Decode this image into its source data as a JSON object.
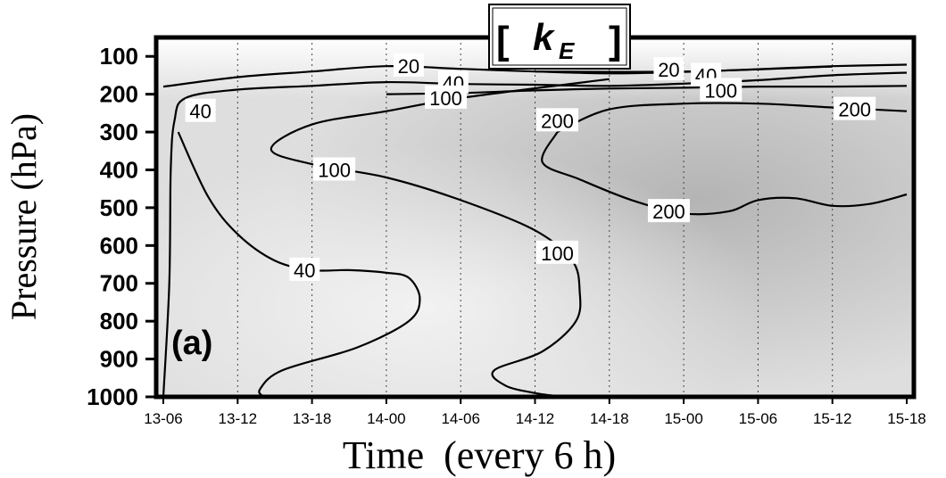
{
  "chart_data": {
    "type": "contour",
    "title": {
      "bracket_open": "[",
      "symbol": "k",
      "subscript": "E",
      "bracket_close": "]"
    },
    "panel_label": "(a)",
    "xlabel": "Time  (every 6 h)",
    "ylabel": "Pressure (hPa)",
    "x_categories": [
      "13-06",
      "13-12",
      "13-18",
      "14-00",
      "14-06",
      "14-12",
      "14-18",
      "15-00",
      "15-06",
      "15-12",
      "15-18"
    ],
    "y_ticks": [
      100,
      200,
      300,
      400,
      500,
      600,
      700,
      800,
      900,
      1000
    ],
    "ylim": [
      1000,
      50
    ],
    "y_scale": "linear (pressure increasing downward)",
    "grid": "dotted vertical lines at each time step",
    "shading": "grayscale, darker = larger values",
    "contour_levels": [
      20,
      40,
      100,
      200
    ],
    "contours": [
      {
        "level": 20,
        "label": "20",
        "points": [
          [
            0,
            180
          ],
          [
            1,
            155
          ],
          [
            2,
            140
          ],
          [
            3,
            126
          ],
          [
            4,
            133
          ],
          [
            5,
            140
          ],
          [
            6,
            145
          ],
          [
            7,
            141
          ],
          [
            8,
            134
          ],
          [
            9,
            126
          ],
          [
            10,
            122
          ]
        ]
      },
      {
        "level": 20,
        "label": "20",
        "points": [
          [
            5,
            140
          ],
          [
            7,
            140
          ],
          [
            9,
            127
          ]
        ]
      },
      {
        "level": 40,
        "label": "40",
        "points": [
          [
            0,
            1000
          ],
          [
            0.08,
            700
          ],
          [
            0.1,
            400
          ],
          [
            0.15,
            270
          ],
          [
            0.3,
            210
          ],
          [
            1,
            188
          ],
          [
            2,
            178
          ],
          [
            3,
            168
          ],
          [
            4,
            173
          ],
          [
            5,
            175
          ],
          [
            6,
            178
          ],
          [
            7,
            172
          ],
          [
            8,
            163
          ],
          [
            9,
            150
          ],
          [
            10,
            143
          ]
        ]
      },
      {
        "level": 40,
        "label": "40",
        "points": [
          [
            0.2,
            300
          ],
          [
            0.6,
            470
          ],
          [
            1,
            570
          ],
          [
            1.5,
            640
          ],
          [
            2,
            665
          ],
          [
            2.5,
            665
          ],
          [
            3,
            672
          ],
          [
            3.3,
            685
          ],
          [
            3.45,
            740
          ],
          [
            3.3,
            800
          ],
          [
            2.6,
            870
          ],
          [
            1.6,
            930
          ],
          [
            1.3,
            980
          ],
          [
            1.35,
            1000
          ]
        ]
      },
      {
        "level": 100,
        "label": "100",
        "points": [
          [
            3,
            200
          ],
          [
            4,
            197
          ],
          [
            5,
            190
          ],
          [
            6,
            185
          ],
          [
            7,
            183
          ],
          [
            8,
            180
          ],
          [
            9,
            180
          ],
          [
            10,
            178
          ]
        ]
      },
      {
        "level": 100,
        "label": "100",
        "points": [
          [
            6,
            160
          ],
          [
            4,
            210
          ],
          [
            3,
            245
          ],
          [
            2,
            280
          ],
          [
            1.45,
            345
          ],
          [
            2,
            385
          ],
          [
            3,
            420
          ],
          [
            4,
            480
          ],
          [
            5,
            560
          ],
          [
            5.5,
            640
          ],
          [
            5.6,
            720
          ],
          [
            5.55,
            800
          ],
          [
            5.1,
            880
          ],
          [
            4.45,
            930
          ],
          [
            4.6,
            970
          ],
          [
            5,
            990
          ],
          [
            5.4,
            1000
          ]
        ]
      },
      {
        "level": 200,
        "label": "200",
        "points": [
          [
            5.3,
            300
          ],
          [
            5.1,
            380
          ],
          [
            5.6,
            425
          ],
          [
            6.3,
            480
          ],
          [
            7,
            515
          ],
          [
            7.6,
            510
          ],
          [
            8,
            480
          ],
          [
            8.5,
            475
          ],
          [
            9,
            495
          ],
          [
            9.5,
            490
          ],
          [
            10,
            465
          ]
        ]
      },
      {
        "level": 200,
        "label": "200",
        "points": [
          [
            5.3,
            300
          ],
          [
            6,
            240
          ],
          [
            7,
            225
          ],
          [
            8,
            225
          ],
          [
            9,
            235
          ],
          [
            10,
            245
          ]
        ]
      }
    ],
    "contour_label_positions": [
      {
        "text": "20",
        "x": 3.3,
        "y": 125
      },
      {
        "text": "20",
        "x": 6.8,
        "y": 135
      },
      {
        "text": "40",
        "x": 0.5,
        "y": 245
      },
      {
        "text": "40",
        "x": 3.9,
        "y": 170
      },
      {
        "text": "40",
        "x": 7.3,
        "y": 150
      },
      {
        "text": "40",
        "x": 1.9,
        "y": 665
      },
      {
        "text": "100",
        "x": 3.8,
        "y": 210
      },
      {
        "text": "100",
        "x": 7.5,
        "y": 190
      },
      {
        "text": "100",
        "x": 2.3,
        "y": 400
      },
      {
        "text": "100",
        "x": 5.3,
        "y": 620
      },
      {
        "text": "200",
        "x": 5.3,
        "y": 270
      },
      {
        "text": "200",
        "x": 9.3,
        "y": 240
      },
      {
        "text": "200",
        "x": 6.8,
        "y": 510
      }
    ]
  }
}
